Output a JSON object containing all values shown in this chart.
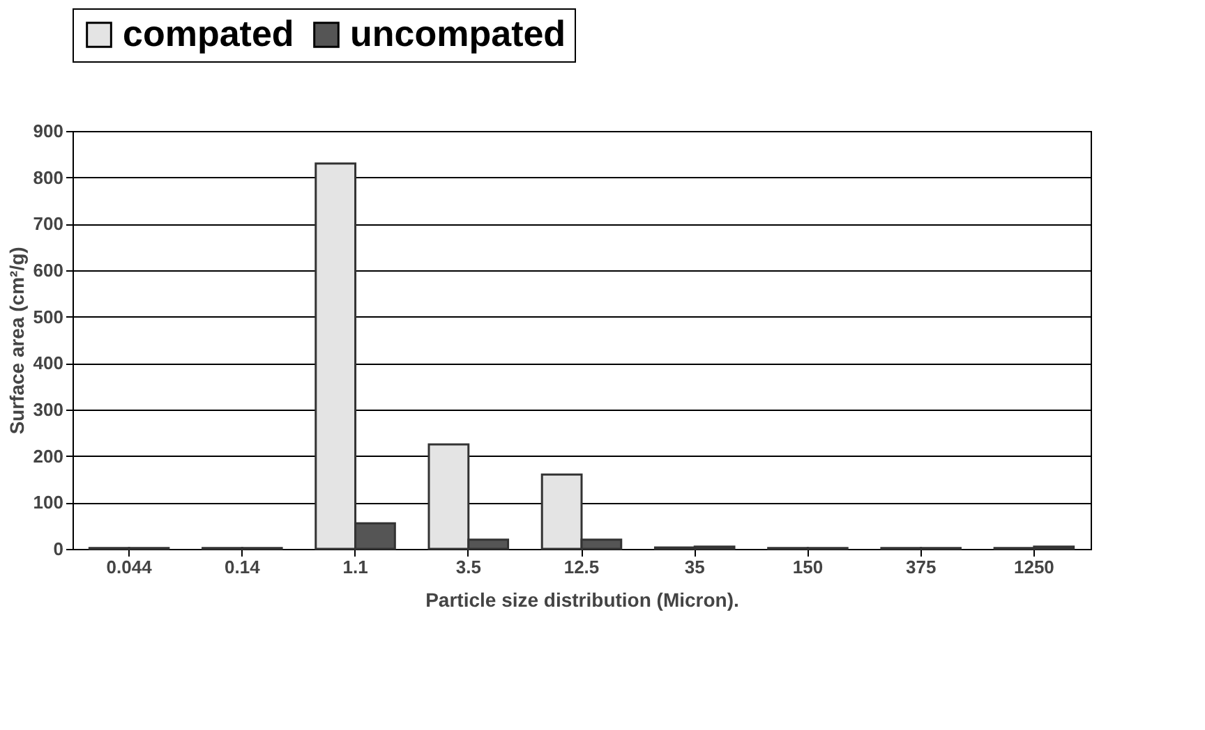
{
  "chart_data": {
    "type": "bar",
    "xlabel": "Particle size distribution (Micron).",
    "ylabel": "Surface area (cm²/g)",
    "categories": [
      "0.044",
      "0.14",
      "1.1",
      "3.5",
      "12.5",
      "35",
      "150",
      "375",
      "1250"
    ],
    "series": [
      {
        "name": "compated",
        "color": "#e4e4e4",
        "values": [
          2,
          2,
          830,
          225,
          160,
          3,
          2,
          2,
          2
        ]
      },
      {
        "name": "uncompated",
        "color": "#555555",
        "values": [
          2,
          2,
          55,
          20,
          20,
          5,
          2,
          2,
          5
        ]
      }
    ],
    "ylim": [
      0,
      900
    ],
    "yticks": [
      0,
      100,
      200,
      300,
      400,
      500,
      600,
      700,
      800,
      900
    ],
    "grid": "y",
    "legend": "top"
  }
}
